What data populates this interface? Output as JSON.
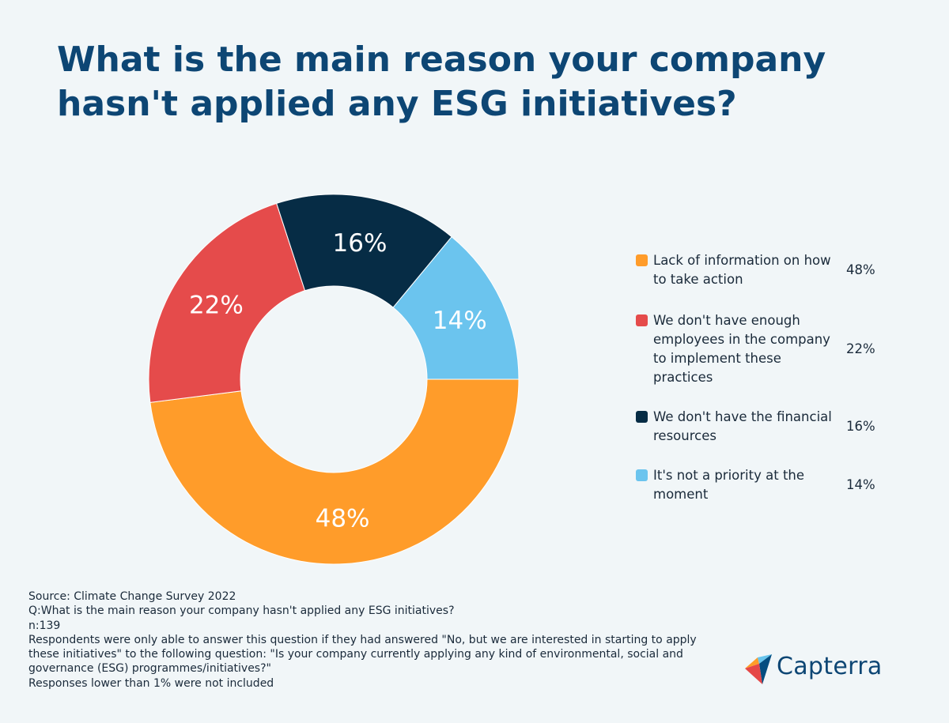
{
  "title": "What is the main reason your company hasn't applied any ESG initiatives?",
  "chart_data": {
    "type": "pie",
    "variant": "donut",
    "title": "What is the main reason your company hasn't applied any ESG initiatives?",
    "categories": [
      "Lack of information on how to take action",
      "We don't have enough employees in the company to implement these practices",
      "We don't have the financial resources",
      "It's not a priority at the moment"
    ],
    "values": [
      48,
      22,
      16,
      14
    ],
    "value_labels": [
      "48%",
      "22%",
      "16%",
      "14%"
    ],
    "colors": [
      "#ff9c2a",
      "#e54b4b",
      "#062c45",
      "#6bc4ee"
    ],
    "legend_position": "right"
  },
  "notes": [
    "Source: Climate Change Survey 2022",
    "Q:What is the main reason your company hasn't applied any ESG initiatives?",
    "n:139",
    "Respondents were only able to answer this question if they had answered \"No, but we are interested in starting to apply these initiatives\" to the following question: \"Is your company currently applying any kind of environmental, social and governance (ESG) programmes/initiatives?\"",
    "Responses lower than 1% were not included"
  ],
  "brand": {
    "name": "Capterra",
    "icon": "capterra-logo-icon"
  }
}
